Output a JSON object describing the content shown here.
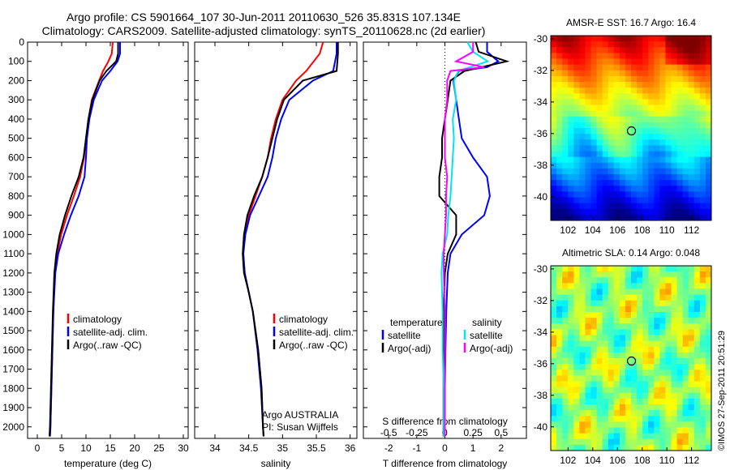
{
  "header": {
    "line1": "Argo profile: CS 5901664_107 30-Jun-2011 20110630_526 35.831S 107.134E",
    "line2": "Climatology: CARS2009. Satellite-adjusted climatology: synTS_20110628.nc (2d earlier)"
  },
  "timestamp": "©IMOS 27-Sep-2011 20:51:29",
  "chart_data": [
    {
      "type": "line",
      "panel": "temperature",
      "xlabel": "temperature (deg C)",
      "ylabel": "",
      "xlim": [
        -2,
        31
      ],
      "ylim": [
        2060,
        0
      ],
      "xticks": [
        0,
        5,
        10,
        15,
        20,
        25,
        30
      ],
      "yticks": [
        0,
        100,
        200,
        300,
        400,
        500,
        600,
        700,
        800,
        900,
        1000,
        1100,
        1200,
        1300,
        1400,
        1500,
        1600,
        1700,
        1800,
        1900,
        2000
      ],
      "legend": [
        "climatology",
        "satellite-adj. clim.",
        "Argo(..raw -QC)"
      ],
      "series": [
        {
          "name": "climatology",
          "color": "#ff0000",
          "depth": [
            0,
            60,
            100,
            150,
            200,
            300,
            400,
            500,
            600,
            700,
            800,
            900,
            1000,
            1100,
            1200,
            1400,
            1600,
            1800,
            2000,
            2050
          ],
          "values": [
            15.5,
            15.3,
            14.6,
            13.5,
            12.7,
            11.2,
            10.5,
            10.0,
            9.6,
            8.8,
            7.5,
            6.1,
            4.9,
            4.1,
            3.6,
            3.3,
            3.1,
            2.9,
            2.7,
            2.6
          ]
        },
        {
          "name": "satellite-adj. clim.",
          "color": "#0000ff",
          "depth": [
            0,
            60,
            100,
            150,
            200,
            300,
            400,
            500,
            600,
            700,
            800,
            900,
            1000,
            1100,
            1200,
            1400,
            1600,
            1800,
            2000,
            2050
          ],
          "values": [
            17.0,
            17.0,
            16.5,
            15.0,
            13.3,
            11.6,
            10.7,
            10.2,
            10.0,
            9.7,
            8.5,
            6.9,
            5.5,
            4.3,
            3.7,
            3.3,
            3.1,
            2.9,
            2.7,
            2.6
          ]
        },
        {
          "name": "Argo(..raw -QC)",
          "color": "#000000",
          "depth": [
            0,
            60,
            100,
            150,
            200,
            300,
            400,
            500,
            600,
            700,
            800,
            900,
            1000,
            1100,
            1200,
            1400,
            1600,
            1800,
            2000,
            2050
          ],
          "values": [
            16.6,
            16.6,
            16.2,
            14.2,
            12.8,
            11.3,
            10.5,
            10.0,
            9.5,
            8.5,
            7.0,
            5.7,
            4.6,
            3.9,
            3.5,
            3.2,
            3.0,
            2.8,
            2.6,
            2.5
          ]
        }
      ]
    },
    {
      "type": "line",
      "panel": "salinity",
      "xlabel": "salinity",
      "ylabel": "",
      "xlim": [
        33.7,
        36.1
      ],
      "ylim": [
        2060,
        0
      ],
      "xticks": [
        34,
        34.5,
        35,
        35.5,
        36
      ],
      "legend": [
        "climatology",
        "satellite-adj. clim.",
        "Argo(..raw -QC)"
      ],
      "annotation": [
        "Argo AUSTRALIA",
        "PI: Susan Wijffels"
      ],
      "series": [
        {
          "name": "climatology",
          "color": "#ff0000",
          "depth": [
            0,
            60,
            150,
            200,
            300,
            400,
            500,
            600,
            700,
            800,
            900,
            1000,
            1100,
            1200,
            1300,
            1400,
            1600,
            1800,
            2000,
            2050
          ],
          "values": [
            35.6,
            35.55,
            35.35,
            35.2,
            35.0,
            34.9,
            34.83,
            34.78,
            34.7,
            34.6,
            34.5,
            34.44,
            34.42,
            34.44,
            34.5,
            34.56,
            34.64,
            34.69,
            34.71,
            34.72
          ]
        },
        {
          "name": "satellite-adj. clim.",
          "color": "#0000ff",
          "depth": [
            0,
            60,
            150,
            200,
            300,
            400,
            500,
            600,
            700,
            800,
            900,
            1000,
            1100,
            1200,
            1300,
            1400,
            1600,
            1800,
            2000,
            2050
          ],
          "values": [
            35.8,
            35.8,
            35.75,
            35.45,
            35.1,
            34.98,
            34.9,
            34.85,
            34.78,
            34.65,
            34.52,
            34.45,
            34.42,
            34.44,
            34.5,
            34.56,
            34.63,
            34.68,
            34.71,
            34.72
          ]
        },
        {
          "name": "Argo(..raw -QC)",
          "color": "#000000",
          "depth": [
            0,
            60,
            150,
            200,
            300,
            400,
            500,
            600,
            700,
            800,
            900,
            1000,
            1100,
            1200,
            1300,
            1400,
            1600,
            1800,
            2000,
            2050
          ],
          "values": [
            35.82,
            35.82,
            35.8,
            35.3,
            35.02,
            34.92,
            34.85,
            34.78,
            34.7,
            34.58,
            34.48,
            34.43,
            34.41,
            34.43,
            34.5,
            34.56,
            34.64,
            34.69,
            34.71,
            34.72
          ]
        }
      ]
    },
    {
      "type": "line",
      "panel": "difference",
      "xlabel": "T difference from climatology",
      "xlabel_top": "S difference from climatology",
      "xlim": [
        -2.9,
        2.9
      ],
      "ylim": [
        2060,
        0
      ],
      "xticks": [
        -2,
        -1,
        0,
        1,
        2
      ],
      "xticks_s": [
        -0.5,
        -0.25,
        0,
        0.25,
        0.5
      ],
      "s_scale": 4,
      "legend_temperature": {
        "title": "temperature",
        "items": [
          "satellite",
          "Argo(-adj)"
        ]
      },
      "legend_salinity": {
        "title": "salinity",
        "items": [
          "satellite",
          "Argo(-adj)"
        ]
      },
      "series": [
        {
          "name": "temperature satellite",
          "color": "#0000ff",
          "depth": [
            0,
            50,
            100,
            130,
            150,
            200,
            300,
            400,
            500,
            600,
            700,
            800,
            900,
            1000,
            1100,
            1200,
            1400,
            1600,
            1800,
            2000,
            2050
          ],
          "values": [
            1.5,
            1.5,
            1.9,
            1.5,
            0.5,
            0.3,
            0.4,
            0.5,
            0.6,
            1.0,
            1.5,
            1.6,
            1.4,
            0.6,
            0.2,
            0.1,
            0.05,
            0.02,
            0.0,
            0.0,
            0.0
          ]
        },
        {
          "name": "temperature Argo(-adj)",
          "color": "#000000",
          "depth": [
            0,
            50,
            100,
            130,
            150,
            200,
            300,
            400,
            500,
            600,
            700,
            800,
            900,
            1000,
            1100,
            1200,
            1400,
            1600,
            1800,
            2000,
            2050
          ],
          "values": [
            1.1,
            1.2,
            2.2,
            1.3,
            0.7,
            0.2,
            0.1,
            0.0,
            -0.1,
            -0.1,
            -0.2,
            -0.2,
            0.4,
            0.4,
            0.1,
            0.0,
            -0.05,
            -0.05,
            -0.05,
            -0.05,
            -0.05
          ]
        },
        {
          "name": "salinity satellite",
          "color": "#00e5ee",
          "depth": [
            0,
            50,
            100,
            150,
            200,
            300,
            400,
            500,
            600,
            700,
            800,
            900,
            1000,
            1100,
            1200,
            1400,
            1600,
            1800,
            2000,
            2050
          ],
          "values": [
            0.2,
            0.25,
            0.38,
            0.12,
            0.08,
            0.1,
            0.07,
            0.08,
            0.07,
            0.06,
            0.05,
            0.03,
            0.02,
            -0.02,
            -0.03,
            -0.02,
            -0.02,
            -0.01,
            -0.01,
            -0.01
          ]
        },
        {
          "name": "salinity Argo(-adj)",
          "color": "#ff00ff",
          "depth": [
            0,
            50,
            100,
            130,
            150,
            200,
            300,
            400,
            500,
            600,
            700,
            800,
            900,
            1000,
            1100,
            1200,
            1400,
            1600,
            1800,
            2000,
            2050
          ],
          "values": [
            0.25,
            0.25,
            0.1,
            0.35,
            0.05,
            0.02,
            0.02,
            0.0,
            0.0,
            0.0,
            0.02,
            0.01,
            0.01,
            0.0,
            -0.01,
            -0.01,
            0.0,
            0.0,
            0.0,
            0.0,
            0.0
          ]
        }
      ]
    },
    {
      "type": "heatmap",
      "panel": "sst_map",
      "title": "AMSR-E SST: 16.7 Argo: 16.4",
      "xlim": [
        100.6,
        113.6
      ],
      "ylim": [
        -41.5,
        -29.8
      ],
      "xticks": [
        102,
        104,
        106,
        108,
        110,
        112
      ],
      "yticks": [
        -30,
        -32,
        -34,
        -36,
        -38,
        -40
      ],
      "marker": {
        "lon": 107.134,
        "lat": -35.831
      },
      "colormap": "jet"
    },
    {
      "type": "heatmap",
      "panel": "sla_map",
      "title": "Altimetric SLA: 0.14 Argo: 0.048",
      "xlim": [
        100.6,
        113.6
      ],
      "ylim": [
        -41.5,
        -29.8
      ],
      "xticks": [
        102,
        104,
        106,
        108,
        110,
        112
      ],
      "yticks": [
        -30,
        -32,
        -34,
        -36,
        -38,
        -40
      ],
      "marker": {
        "lon": 107.134,
        "lat": -35.831
      },
      "colormap": "jet"
    }
  ]
}
